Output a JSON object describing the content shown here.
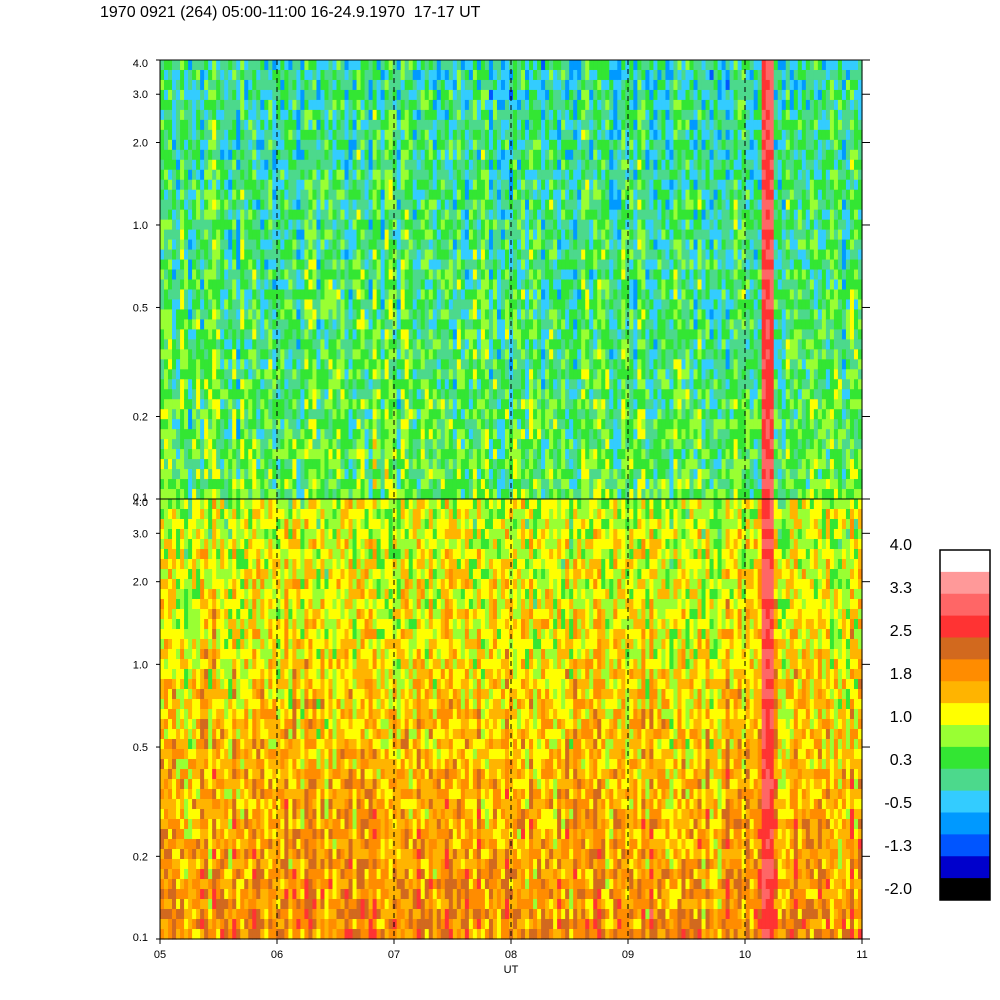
{
  "title": "1970 0921 (264) 05:00-11:00 16-24.9.1970  17-17 UT",
  "chart_data": {
    "type": "heatmap",
    "panels": [
      {
        "name": "",
        "y_scale": "log",
        "ylim": [
          0.1,
          4.0
        ],
        "y_ticks": [
          "0.1",
          "0.2",
          "0.5",
          "1.0",
          "2.0",
          "3.0",
          "4.0"
        ],
        "base_level": 0.5,
        "color_levels_approx": "mostly green/cyan (-0.5 to 1.0), red vertical streak near 10:12"
      },
      {
        "name": "",
        "y_scale": "log",
        "ylim": [
          0.1,
          4.0
        ],
        "y_ticks": [
          "0.1",
          "0.2",
          "0.5",
          "1.0",
          "2.0",
          "3.0",
          "4.0"
        ],
        "base_level": 1.6,
        "color_levels_approx": "mostly yellow/orange (1.0 to 1.8), red vertical streak near 10:12"
      }
    ],
    "x_ticks": [
      "05",
      "06",
      "07",
      "08",
      "09",
      "10",
      "11"
    ],
    "xlabel": "UT",
    "xlim_hours": [
      5,
      11
    ],
    "hour_gridlines": "dashed",
    "event_hour": 10.2,
    "colorbar": {
      "labels": [
        "4.0",
        "3.3",
        "2.5",
        "1.8",
        "1.0",
        "0.3",
        "-0.5",
        "-1.3",
        "-2.0"
      ],
      "colors": [
        "#ffffff",
        "#ff9999",
        "#ff6666",
        "#ff3333",
        "#d2691e",
        "#ff8c00",
        "#ffb400",
        "#ffff00",
        "#99ff33",
        "#33e633",
        "#4cd98c",
        "#33ccff",
        "#0099ff",
        "#0055ff",
        "#0000cc",
        "#000000"
      ]
    }
  }
}
